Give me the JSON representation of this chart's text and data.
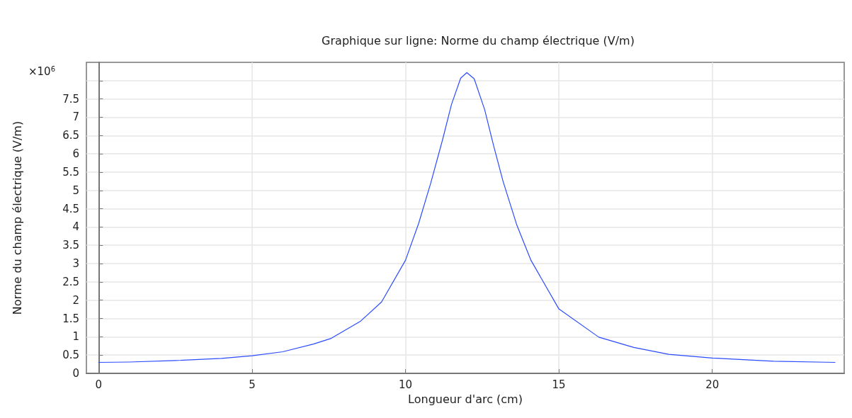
{
  "chart_data": {
    "type": "line",
    "title": "Graphique sur ligne: Norme du champ électrique (V/m)",
    "xlabel": "Longueur d'arc (cm)",
    "ylabel": "Norme du champ électrique (V/m)",
    "annotations": [
      "×10$^{6}$"
    ],
    "series": [
      {
        "color": "#2b4bff",
        "x": [
          0,
          1,
          2.5,
          4,
          5,
          6,
          7,
          7.56,
          8.54,
          9.22,
          10,
          10.43,
          10.82,
          11.21,
          11.5,
          11.8,
          12,
          12.24,
          12.58,
          12.88,
          13.18,
          13.63,
          14.09,
          15,
          16.3,
          17.44,
          18.58,
          20,
          22,
          24
        ],
        "values": [
          0.3,
          0.31,
          0.35,
          0.41,
          0.48,
          0.59,
          0.8,
          0.95,
          1.43,
          1.95,
          3.09,
          4.1,
          5.19,
          6.39,
          7.35,
          8.07,
          8.22,
          8.05,
          7.21,
          6.2,
          5.25,
          4.05,
          3.09,
          1.76,
          0.99,
          0.71,
          0.52,
          0.42,
          0.33,
          0.3
        ]
      }
    ],
    "xlim": [
      -0.4,
      24.3
    ],
    "xticks": [
      0,
      5,
      10,
      15,
      20
    ],
    "ylim": [
      0,
      8.5
    ],
    "yticks": [
      0,
      0.5,
      1,
      1.5,
      2,
      2.5,
      3,
      3.5,
      4,
      4.5,
      5,
      5.5,
      6,
      6.5,
      7,
      7.5,
      {
        "value": 8,
        "label": null
      }
    ],
    "grid": true,
    "marker": "none",
    "line_style": "solid"
  }
}
